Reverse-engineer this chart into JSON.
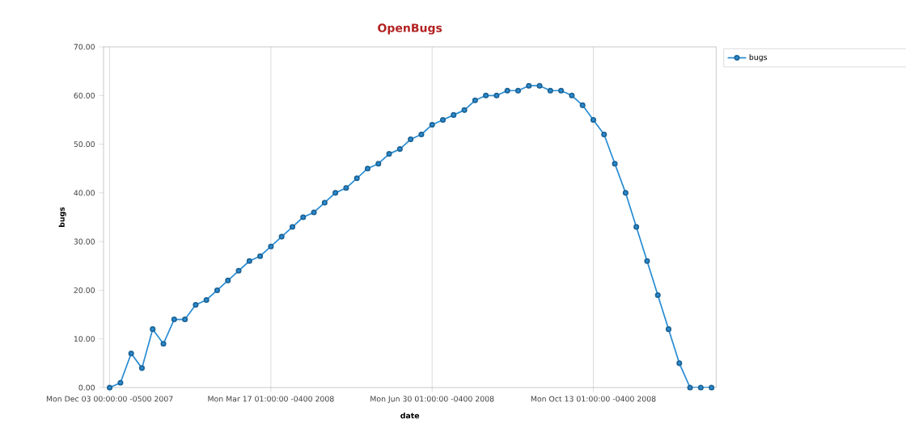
{
  "chart_data": {
    "type": "line",
    "title": "OpenBugs",
    "xlabel": "date",
    "ylabel": "bugs",
    "x": [
      "2007-12-03",
      "2007-12-10",
      "2007-12-17",
      "2007-12-24",
      "2007-12-31",
      "2008-01-07",
      "2008-01-14",
      "2008-01-21",
      "2008-01-28",
      "2008-02-04",
      "2008-02-11",
      "2008-02-18",
      "2008-02-25",
      "2008-03-03",
      "2008-03-10",
      "2008-03-17",
      "2008-03-24",
      "2008-03-31",
      "2008-04-07",
      "2008-04-14",
      "2008-04-21",
      "2008-04-28",
      "2008-05-05",
      "2008-05-12",
      "2008-05-19",
      "2008-05-26",
      "2008-06-02",
      "2008-06-09",
      "2008-06-16",
      "2008-06-23",
      "2008-06-30",
      "2008-07-07",
      "2008-07-14",
      "2008-07-21",
      "2008-07-28",
      "2008-08-04",
      "2008-08-11",
      "2008-08-18",
      "2008-08-25",
      "2008-09-01",
      "2008-09-08",
      "2008-09-15",
      "2008-09-22",
      "2008-09-29",
      "2008-10-06",
      "2008-10-13",
      "2008-10-20",
      "2008-10-27",
      "2008-11-03",
      "2008-11-10",
      "2008-11-17",
      "2008-11-24",
      "2008-12-01",
      "2008-12-08",
      "2008-12-15",
      "2008-12-22",
      "2008-12-29"
    ],
    "series": [
      {
        "name": "bugs",
        "color": "#2a8dd4",
        "values": [
          0,
          1,
          7,
          4,
          12,
          9,
          14,
          14,
          17,
          18,
          20,
          22,
          24,
          26,
          27,
          29,
          31,
          33,
          35,
          36,
          38,
          40,
          41,
          43,
          45,
          46,
          48,
          49,
          51,
          52,
          54,
          55,
          56,
          57,
          59,
          60,
          60,
          61,
          61,
          62,
          62,
          61,
          61,
          60,
          58,
          55,
          52,
          46,
          40,
          33,
          26,
          19,
          12,
          5,
          0,
          0,
          0
        ]
      }
    ],
    "xlim": [
      "2007-11-29",
      "2009-01-01"
    ],
    "xticks": [
      {
        "value": "2007-12-03",
        "label": "Mon Dec 03 00:00:00 -0500 2007"
      },
      {
        "value": "2008-03-17",
        "label": "Mon Mar 17 01:00:00 -0400 2008"
      },
      {
        "value": "2008-06-30",
        "label": "Mon Jun 30 01:00:00 -0400 2008"
      },
      {
        "value": "2008-10-13",
        "label": "Mon Oct 13 01:00:00 -0400 2008"
      }
    ],
    "ylim": [
      0,
      70
    ],
    "yticks": [
      {
        "value": 0,
        "label": "0.00"
      },
      {
        "value": 10,
        "label": "10.00"
      },
      {
        "value": 20,
        "label": "20.00"
      },
      {
        "value": 30,
        "label": "30.00"
      },
      {
        "value": 40,
        "label": "40.00"
      },
      {
        "value": 50,
        "label": "50.00"
      },
      {
        "value": 60,
        "label": "60.00"
      },
      {
        "value": 70,
        "label": "70.00"
      }
    ],
    "grid": "x",
    "legend": "top right",
    "marker": "circle",
    "line_style": "solid"
  }
}
